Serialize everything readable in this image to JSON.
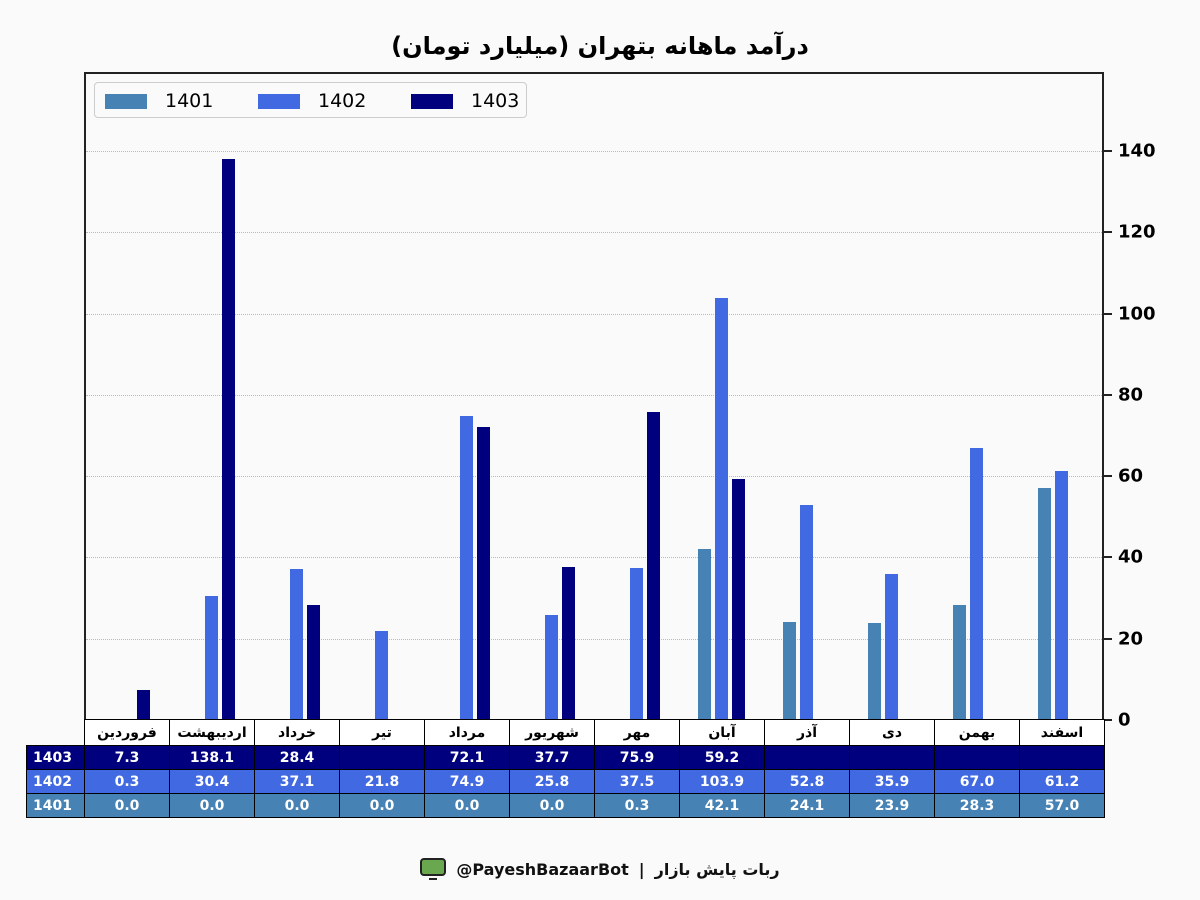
{
  "title": "درآمد ماهانه بتهران (میلیارد تومان)",
  "colors": {
    "1401": "#4682b4",
    "1402": "#4169e1",
    "1403": "#00007f"
  },
  "legend": {
    "items": [
      {
        "label": "1401",
        "color": "#4682b4"
      },
      {
        "label": "1402",
        "color": "#4169e1"
      },
      {
        "label": "1403",
        "color": "#00007f"
      }
    ]
  },
  "axis": {
    "y_ticks": [
      "0",
      "20",
      "40",
      "60",
      "80",
      "100",
      "120",
      "140"
    ]
  },
  "table": {
    "months": [
      "فروردین",
      "اردیبهشت",
      "خرداد",
      "تیر",
      "مرداد",
      "شهریور",
      "مهر",
      "آبان",
      "آذر",
      "دی",
      "بهمن",
      "اسفند"
    ],
    "rows": [
      {
        "label": "1403",
        "values": [
          "7.3",
          "138.1",
          "28.4",
          "",
          "72.1",
          "37.7",
          "75.9",
          "59.2",
          "",
          "",
          "",
          ""
        ]
      },
      {
        "label": "1402",
        "values": [
          "0.3",
          "30.4",
          "37.1",
          "21.8",
          "74.9",
          "25.8",
          "37.5",
          "103.9",
          "52.8",
          "35.9",
          "67.0",
          "61.2"
        ]
      },
      {
        "label": "1401",
        "values": [
          "0.0",
          "0.0",
          "0.0",
          "0.0",
          "0.0",
          "0.0",
          "0.3",
          "42.1",
          "24.1",
          "23.9",
          "28.3",
          "57.0"
        ]
      }
    ]
  },
  "footer": {
    "bot_name": "ربات پایش بازار",
    "separator": "|",
    "handle": "@PayeshBazaarBot"
  },
  "chart_data": {
    "type": "bar",
    "title": "درآمد ماهانه بتهران (میلیارد تومان)",
    "xlabel": "",
    "ylabel": "",
    "ylim": [
      0,
      159
    ],
    "y_ticks": [
      0,
      20,
      40,
      60,
      80,
      100,
      120,
      140
    ],
    "y_axis_position": "right",
    "grid": "horizontal dotted",
    "legend_position": "upper left",
    "categories": [
      "فروردین",
      "اردیبهشت",
      "خرداد",
      "تیر",
      "مرداد",
      "شهریور",
      "مهر",
      "آبان",
      "آذر",
      "دی",
      "بهمن",
      "اسفند"
    ],
    "series": [
      {
        "name": "1401",
        "color": "#4682b4",
        "values": [
          0.0,
          0.0,
          0.0,
          0.0,
          0.0,
          0.0,
          0.3,
          42.1,
          24.1,
          23.9,
          28.3,
          57.0
        ]
      },
      {
        "name": "1402",
        "color": "#4169e1",
        "values": [
          0.3,
          30.4,
          37.1,
          21.8,
          74.9,
          25.8,
          37.5,
          103.9,
          52.8,
          35.9,
          67.0,
          61.2
        ]
      },
      {
        "name": "1403",
        "color": "#00007f",
        "values": [
          7.3,
          138.1,
          28.4,
          null,
          72.1,
          37.7,
          75.9,
          59.2,
          null,
          null,
          null,
          null
        ]
      }
    ]
  }
}
